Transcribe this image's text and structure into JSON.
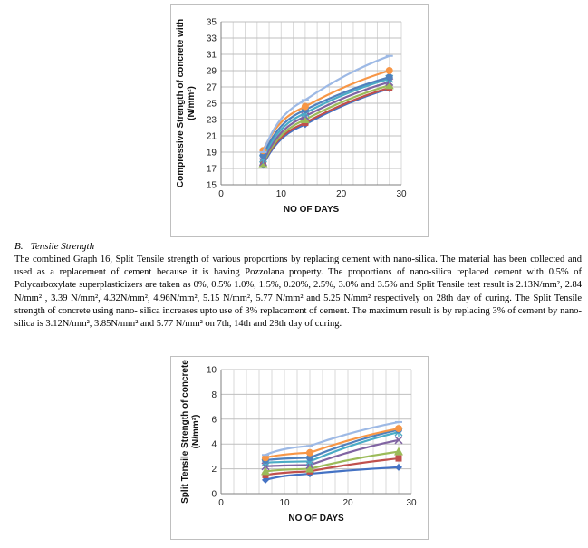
{
  "section": {
    "number": "B.",
    "title": "Tensile Strength",
    "paragraph": "The combined Graph 16, Split Tensile strength of various proportions by replacing cement with nano-silica. The material has been collected and used as a replacement of cement because it is having  Pozzolana property. The  proportions of nano-silica replaced cement with 0.5% of Polycarboxylate superplasticizers are taken as 0%, 0.5% 1.0%, 1.5%, 0.20%, 2.5%, 3.0% and 3.5% and Split Tensile test result is 2.13N/mm², 2.84 N/mm² , 3.39 N/mm², 4.32N/mm², 4.96N/mm², 5.15 N/mm², 5.77 N/mm² and 5.25 N/mm² respectively on 28th day of curing. The Split Tensile strength of concrete using nano- silica increases upto use of 3% replacement of cement. The maximum result is by replacing 3% of cement by nano-silica is 3.12N/mm², 3.85N/mm² and 5.77 N/mm² on 7th, 14th and 28th day of curing."
  },
  "chart_data": [
    {
      "type": "line",
      "xlabel": "NO OF DAYS",
      "ylabel": "Compressive Strength of concrete with (N/mm²)",
      "xlim": [
        0,
        30
      ],
      "ylim": [
        15,
        35
      ],
      "xticks": [
        "0",
        "10",
        "20",
        "30"
      ],
      "yticks": [
        "15",
        "17",
        "19",
        "21",
        "23",
        "25",
        "27",
        "29",
        "31",
        "33",
        "35"
      ],
      "grid": true,
      "x": [
        7,
        14,
        28
      ],
      "series": [
        {
          "values": [
            17.4,
            22.4,
            26.8
          ],
          "color": "#4472C4",
          "marker": "diamond"
        },
        {
          "values": [
            17.6,
            22.6,
            26.9
          ],
          "color": "#C0504D",
          "marker": "square"
        },
        {
          "values": [
            17.6,
            23.0,
            27.2
          ],
          "color": "#9BBB59",
          "marker": "triangle"
        },
        {
          "values": [
            17.8,
            23.4,
            27.6
          ],
          "color": "#8064A2",
          "marker": "x"
        },
        {
          "values": [
            18.2,
            23.8,
            28.0
          ],
          "color": "#4BACC6",
          "marker": "star"
        },
        {
          "values": [
            18.6,
            24.2,
            28.2
          ],
          "color": "#4F81BD",
          "marker": "circle"
        },
        {
          "values": [
            19.2,
            24.6,
            29.0
          ],
          "color": "#F79646",
          "marker": "circle"
        },
        {
          "values": [
            19.0,
            25.4,
            30.8
          ],
          "color": "#9DB9E5",
          "marker": "dash"
        }
      ]
    },
    {
      "type": "line",
      "xlabel": "NO OF DAYS",
      "ylabel": "Split Tensile Strength of concrete (N/mm²)",
      "xlim": [
        0,
        30
      ],
      "ylim": [
        0,
        10
      ],
      "xticks": [
        "0",
        "10",
        "20",
        "30"
      ],
      "yticks": [
        "0",
        "2",
        "4",
        "6",
        "8",
        "10"
      ],
      "grid": true,
      "x": [
        7,
        14,
        28
      ],
      "series": [
        {
          "values": [
            1.1,
            1.6,
            2.13
          ],
          "color": "#4472C4",
          "marker": "diamond"
        },
        {
          "values": [
            1.5,
            1.8,
            2.84
          ],
          "color": "#C0504D",
          "marker": "square"
        },
        {
          "values": [
            1.8,
            2.0,
            3.39
          ],
          "color": "#9BBB59",
          "marker": "triangle"
        },
        {
          "values": [
            2.2,
            2.3,
            4.32
          ],
          "color": "#8064A2",
          "marker": "x"
        },
        {
          "values": [
            2.5,
            2.6,
            4.96
          ],
          "color": "#4BACC6",
          "marker": "star"
        },
        {
          "values": [
            2.7,
            2.9,
            5.15
          ],
          "color": "#4F81BD",
          "marker": "circle"
        },
        {
          "values": [
            2.9,
            3.3,
            5.25
          ],
          "color": "#F79646",
          "marker": "circle"
        },
        {
          "values": [
            3.12,
            3.85,
            5.77
          ],
          "color": "#9DB9E5",
          "marker": "dash"
        }
      ]
    }
  ]
}
